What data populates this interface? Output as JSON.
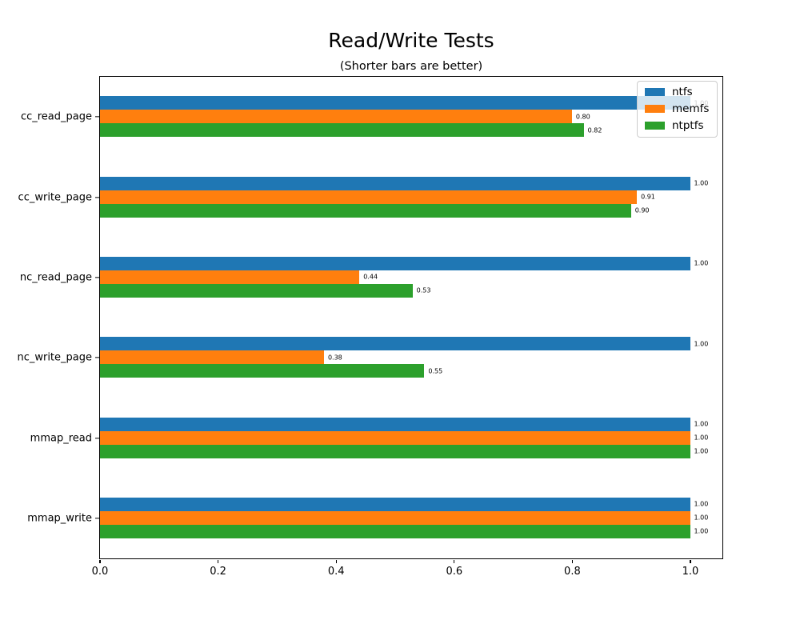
{
  "figure": {
    "title": "Read/Write Tests",
    "subtitle": "(Shorter bars are better)",
    "background": "#ffffff"
  },
  "chart_data": {
    "type": "bar",
    "orientation": "horizontal",
    "title": "Read/Write Tests",
    "subtitle": "(Shorter bars are better)",
    "categories": [
      "cc_read_page",
      "cc_write_page",
      "nc_read_page",
      "nc_write_page",
      "mmap_read",
      "mmap_write"
    ],
    "series": [
      {
        "name": "ntfs",
        "color": "#1f77b4",
        "values": [
          1.0,
          1.0,
          1.0,
          1.0,
          1.0,
          1.0
        ]
      },
      {
        "name": "memfs",
        "color": "#ff7f0e",
        "values": [
          0.8,
          0.91,
          0.44,
          0.38,
          1.0,
          1.0
        ]
      },
      {
        "name": "ntptfs",
        "color": "#2ca02c",
        "values": [
          0.82,
          0.9,
          0.53,
          0.55,
          1.0,
          1.0
        ]
      }
    ],
    "value_labels_shown": true,
    "value_label_format": "0.00",
    "xlabel": "",
    "ylabel": "",
    "xlim": [
      0.0,
      1.054
    ],
    "xticks": [
      {
        "value": 0.0,
        "label": "0.0"
      },
      {
        "value": 0.2,
        "label": "0.2"
      },
      {
        "value": 0.4,
        "label": "0.4"
      },
      {
        "value": 0.6,
        "label": "0.6"
      },
      {
        "value": 0.8,
        "label": "0.8"
      },
      {
        "value": 1.0,
        "label": "1.0"
      }
    ],
    "grid": false,
    "legend": {
      "position": "upper right",
      "entries": [
        "ntfs",
        "memfs",
        "ntptfs"
      ]
    }
  }
}
